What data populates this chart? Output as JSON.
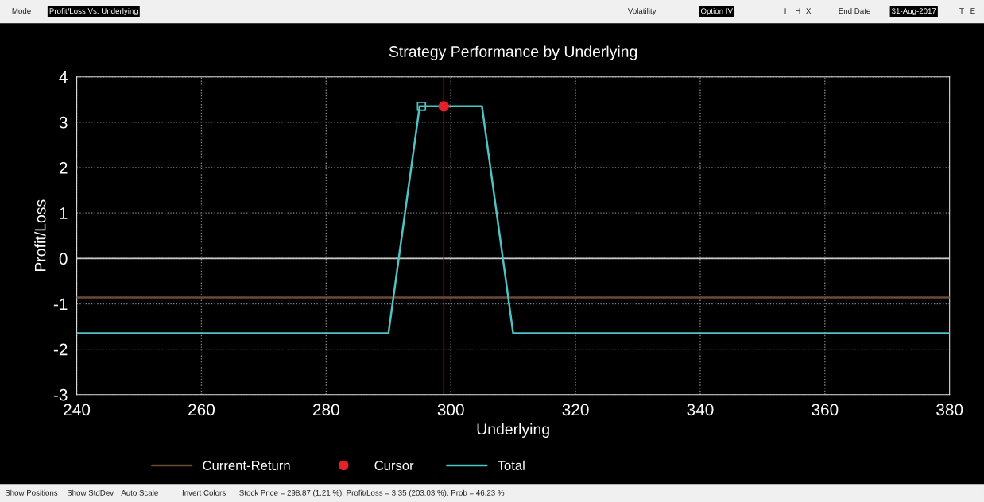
{
  "chart_data": {
    "type": "line",
    "title": "Strategy Performance by Underlying",
    "xlabel": "Underlying",
    "ylabel": "Profit/Loss",
    "series": [
      {
        "name": "Current-Return",
        "color": "#6b4a35",
        "x": [
          240,
          380
        ],
        "values": [
          -0.86,
          -0.86
        ]
      },
      {
        "name": "Cursor",
        "type": "scatter",
        "marker": "circle",
        "color": "#e8202a",
        "x": [
          298.87
        ],
        "values": [
          3.35
        ]
      },
      {
        "name": "Total",
        "color": "#4fc3c3",
        "x": [
          240,
          290,
          295,
          305,
          310,
          380
        ],
        "values": [
          -1.65,
          -1.65,
          3.35,
          3.35,
          -1.65,
          -1.65
        ]
      },
      {
        "type": "scatter",
        "marker": "square",
        "color": "#4fc3c3",
        "x": [
          295.3
        ],
        "values": [
          3.35
        ]
      }
    ],
    "xlim": [
      240,
      380
    ],
    "xticks": [
      240,
      260,
      280,
      300,
      320,
      340,
      360,
      380
    ],
    "ylim": [
      -3,
      4
    ],
    "yticks": [
      -3,
      -2,
      -1,
      0,
      1,
      2,
      3,
      4
    ],
    "ref_lines": [
      {
        "axis": "y",
        "value": 0,
        "color": "#c8c8c8"
      },
      {
        "axis": "x",
        "value": 298.87,
        "color": "#6e1010"
      }
    ],
    "grid": true,
    "legend": "bottom",
    "annotations": [
      "Mode",
      "Profit/Loss Vs. Underlying",
      "Volatility",
      "Option IV",
      "I",
      "H",
      "X",
      "End Date",
      "31-Aug-2017",
      "T",
      "E",
      "Show Positions",
      "Show StdDev",
      "Auto Scale",
      "Invert Colors",
      "Stock Price = 298.87 (1.21 %), Profit/Loss = 3.35 (203.03 %), Prob = 46.23 %"
    ]
  }
}
